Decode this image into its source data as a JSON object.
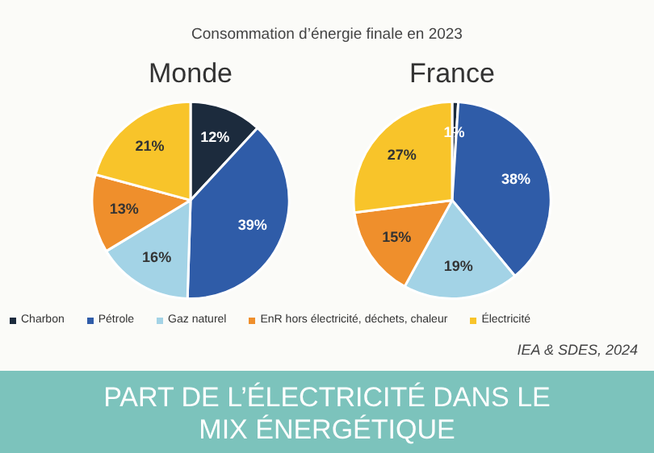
{
  "chart_data": [
    {
      "type": "pie",
      "title": "Monde",
      "categories": [
        "Charbon",
        "Pétrole",
        "Gaz naturel",
        "EnR hors électricité, déchets, chaleur",
        "Électricité"
      ],
      "values": [
        12,
        39,
        16,
        13,
        21
      ],
      "value_labels": [
        "12%",
        "39%",
        "16%",
        "13%",
        "21%"
      ],
      "colors": [
        "#1c2b3d",
        "#2f5ca8",
        "#a3d3e6",
        "#ef8f2c",
        "#f8c42a"
      ],
      "legend": "bottom",
      "annotations": [
        "Consommation d’énergie finale en 2023",
        "PART DE L’ÉLECTRICITÉ DANS LE MIX ÉNERGÉTIQUE"
      ]
    },
    {
      "type": "pie",
      "title": "France",
      "categories": [
        null,
        null,
        null,
        null,
        null
      ],
      "values": [
        1,
        38,
        19,
        15,
        27
      ],
      "value_labels": [
        "1%",
        "38%",
        "19%",
        "15%",
        "27%"
      ],
      "colors": [
        "#1c2b3d",
        "#2f5ca8",
        "#a3d3e6",
        "#ef8f2c",
        "#f8c42a"
      ],
      "annotations": [
        "IEA & SDES, 2024"
      ]
    }
  ]
}
